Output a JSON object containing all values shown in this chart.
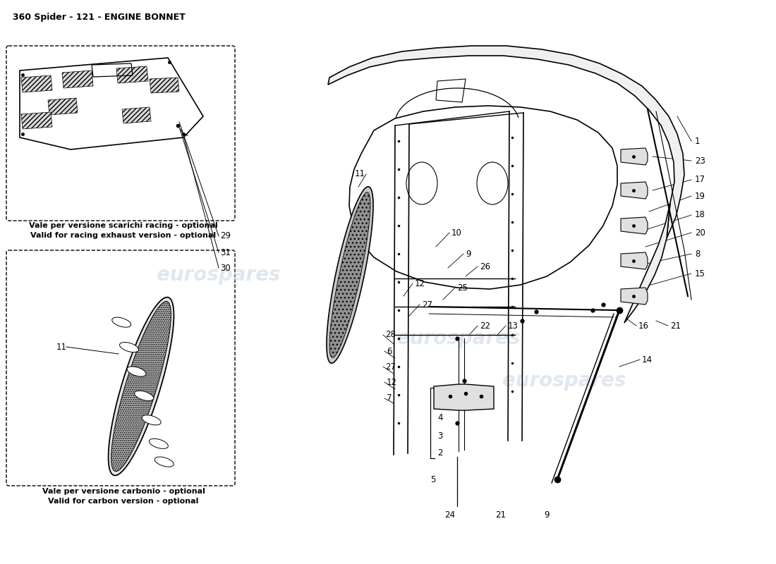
{
  "title": "360 Spider - 121 - ENGINE BONNET",
  "background_color": "#ffffff",
  "title_fontsize": 9,
  "box1_caption_line1": "Vale per versione scarichi racing - optional",
  "box1_caption_line2": "Valid for racing exhaust version - optional",
  "box2_caption_line1": "Vale per versione carbonio - optional",
  "box2_caption_line2": "Valid for carbon version - optional",
  "watermark_text": "eurospares"
}
